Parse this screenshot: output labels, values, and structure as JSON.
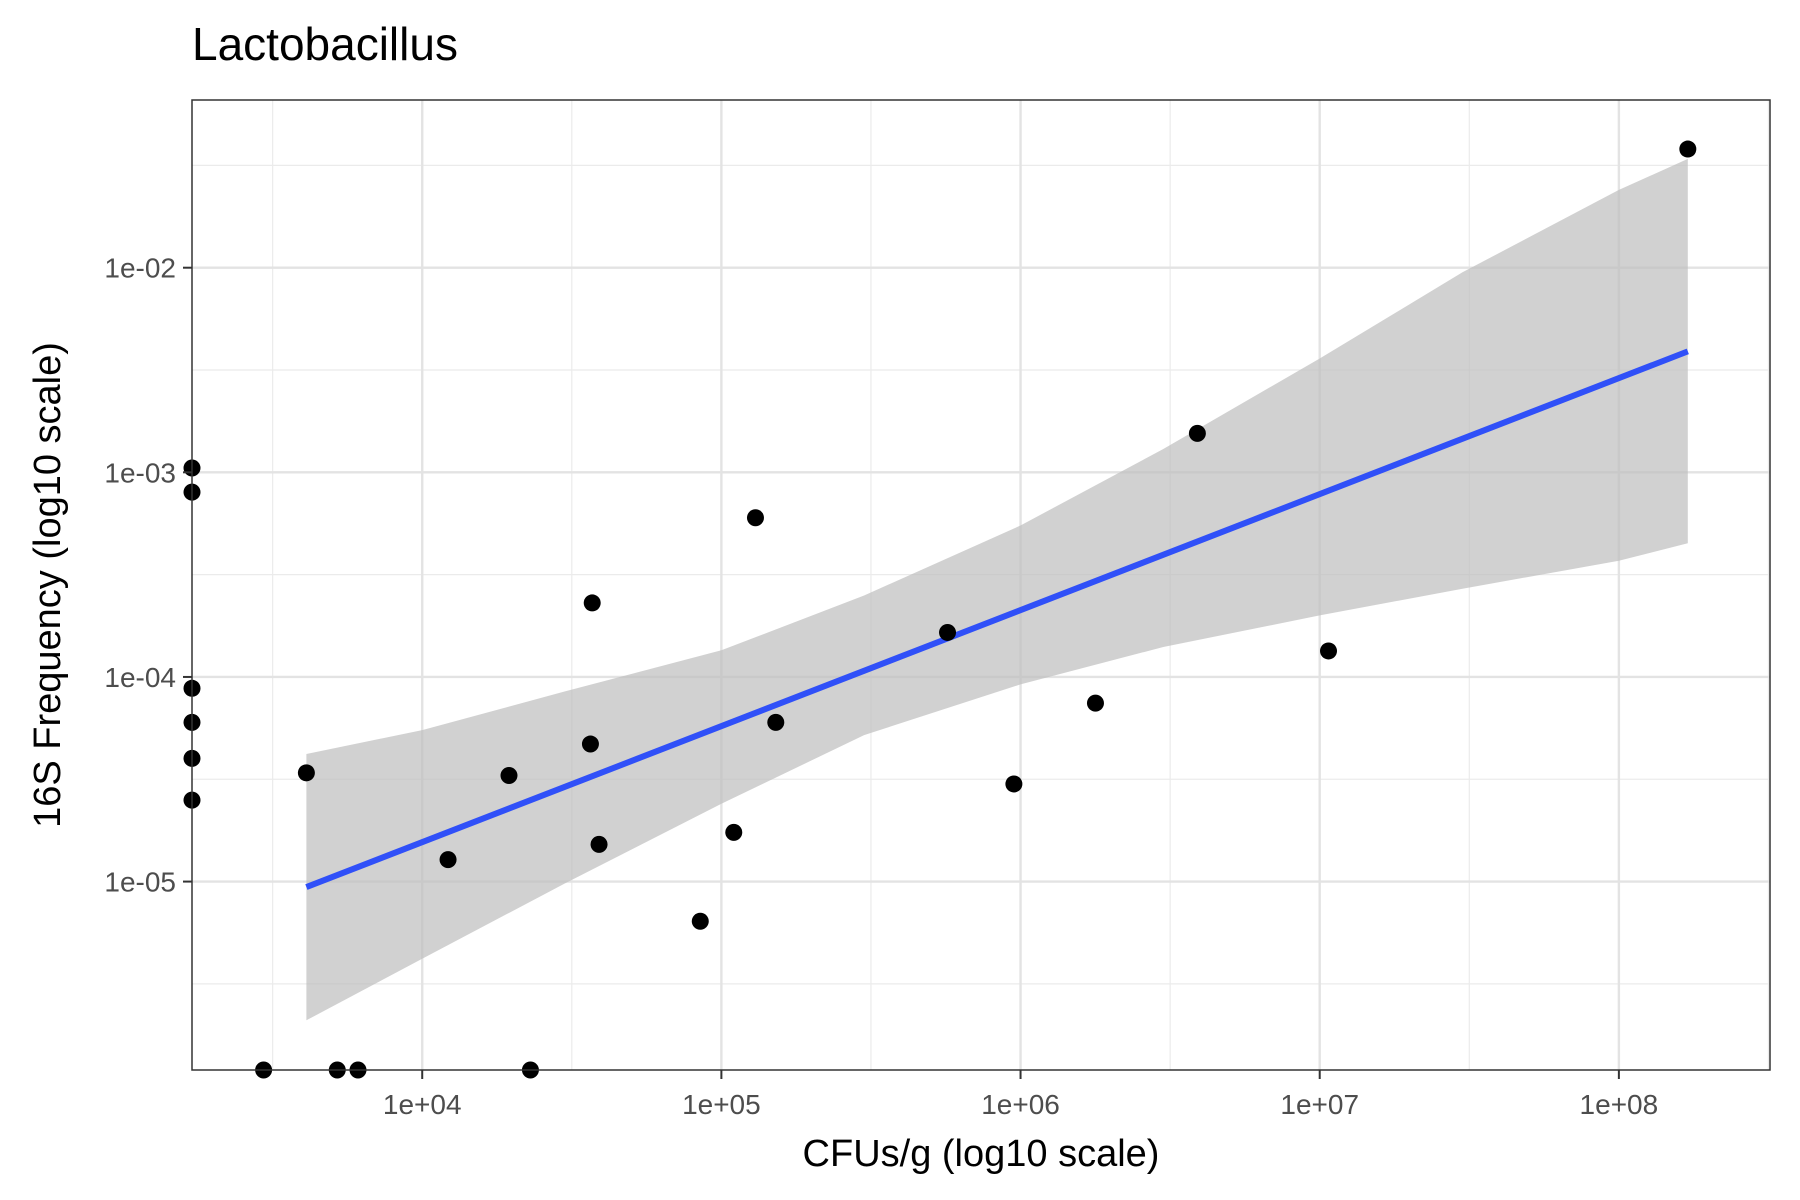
{
  "chart_data": {
    "type": "scatter",
    "title": "Lactobacillus",
    "xlabel": "CFUs/g (log10 scale)",
    "ylabel": "16S Frequency (log10 scale)",
    "x_scale": "log10",
    "y_scale": "log10",
    "xlim": [
      1700,
      320000000
    ],
    "ylim": [
      1.2e-06,
      0.066
    ],
    "x_ticks": [
      {
        "value": 10000,
        "label": "1e+04"
      },
      {
        "value": 100000,
        "label": "1e+05"
      },
      {
        "value": 1000000,
        "label": "1e+06"
      },
      {
        "value": 10000000,
        "label": "1e+07"
      },
      {
        "value": 100000000,
        "label": "1e+08"
      }
    ],
    "y_ticks": [
      {
        "value": 1e-05,
        "label": "1e-05"
      },
      {
        "value": 0.0001,
        "label": "1e-04"
      },
      {
        "value": 0.001,
        "label": "1e-03"
      },
      {
        "value": 0.01,
        "label": "1e-02"
      }
    ],
    "grid": true,
    "legend": "none",
    "points": [
      {
        "x": 1700,
        "y": 0.00105
      },
      {
        "x": 1700,
        "y": 0.0008
      },
      {
        "x": 1700,
        "y": 8.8e-05
      },
      {
        "x": 1700,
        "y": 6e-05
      },
      {
        "x": 1700,
        "y": 4e-05
      },
      {
        "x": 1700,
        "y": 2.5e-05
      },
      {
        "x": 2950,
        "y": 1.2e-06
      },
      {
        "x": 4100,
        "y": 3.4e-05
      },
      {
        "x": 5200,
        "y": 1.2e-06
      },
      {
        "x": 6100,
        "y": 1.2e-06
      },
      {
        "x": 12200,
        "y": 1.28e-05
      },
      {
        "x": 19500,
        "y": 3.3e-05
      },
      {
        "x": 23000,
        "y": 1.2e-06
      },
      {
        "x": 36500,
        "y": 4.7e-05
      },
      {
        "x": 37000,
        "y": 0.00023
      },
      {
        "x": 39000,
        "y": 1.52e-05
      },
      {
        "x": 85000,
        "y": 6.4e-06
      },
      {
        "x": 110000,
        "y": 1.74e-05
      },
      {
        "x": 130000,
        "y": 0.0006
      },
      {
        "x": 152000,
        "y": 6e-05
      },
      {
        "x": 570000,
        "y": 0.000165
      },
      {
        "x": 950000,
        "y": 3e-05
      },
      {
        "x": 1780000,
        "y": 7.45e-05
      },
      {
        "x": 3900000,
        "y": 0.00155
      },
      {
        "x": 10700000,
        "y": 0.000134
      },
      {
        "x": 170000000,
        "y": 0.038
      }
    ],
    "fit_line": {
      "color": "#3050f8",
      "x": [
        4100,
        170000000
      ],
      "y": [
        9.4e-06,
        0.0039
      ]
    },
    "confidence_band": {
      "color": "#bdbdbd",
      "x": [
        4100,
        10000,
        30000,
        100000,
        300000,
        1000000,
        3000000,
        10000000,
        30000000,
        100000000,
        170000000
      ],
      "lower": [
        2.1e-06,
        4.2e-06,
        9.8e-06,
        2.4e-05,
        5.2e-05,
        9.2e-05,
        0.00014,
        0.0002,
        0.00027,
        0.00037,
        0.00045
      ],
      "upper": [
        4.2e-05,
        5.5e-05,
        8.5e-05,
        0.000135,
        0.00025,
        0.00055,
        0.0013,
        0.0036,
        0.0095,
        0.024,
        0.034
      ]
    },
    "point_color": "#000000"
  }
}
